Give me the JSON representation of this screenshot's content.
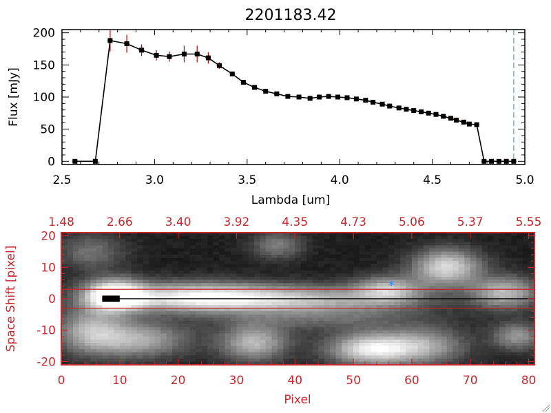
{
  "chart_data": [
    {
      "type": "line",
      "title": "2201183.42",
      "xlabel": "Lambda [um]",
      "ylabel": "Flux [mJy]",
      "xlim": [
        2.5,
        5.0
      ],
      "ylim": [
        -5,
        205
      ],
      "xticks": [
        "2.5",
        "3.0",
        "3.5",
        "4.0",
        "4.5",
        "5.0"
      ],
      "yticks": [
        "0",
        "50",
        "100",
        "150",
        "200"
      ],
      "grid": false,
      "colors": {
        "line": "#000000",
        "marker": "#000000",
        "errorbar": "#cc0000",
        "cutoff_line": "#1a9e8f"
      },
      "cutoff_lambda": 4.94,
      "series": [
        {
          "x": [
            2.57,
            2.68,
            2.76,
            2.85,
            2.93,
            3.01,
            3.08,
            3.16,
            3.23,
            3.29,
            3.35,
            3.42,
            3.48,
            3.54,
            3.6,
            3.66,
            3.72,
            3.78,
            3.84,
            3.89,
            3.94,
            3.99,
            4.04,
            4.09,
            4.14,
            4.18,
            4.23,
            4.27,
            4.32,
            4.36,
            4.4,
            4.44,
            4.48,
            4.52,
            4.56,
            4.6,
            4.63,
            4.67,
            4.7,
            4.74,
            4.78,
            4.82,
            4.86,
            4.9,
            4.94
          ],
          "y": [
            0,
            0,
            188,
            183,
            173,
            165,
            163,
            167,
            167,
            161,
            149,
            136,
            123,
            115,
            109,
            105,
            101,
            100,
            98,
            100,
            101,
            100,
            99,
            97,
            95,
            92,
            89,
            86,
            83,
            81,
            79,
            77,
            75,
            73,
            70,
            67,
            64,
            61,
            58,
            57,
            0,
            0,
            0,
            0,
            0
          ],
          "err": [
            0,
            0,
            17,
            14,
            9,
            8,
            8,
            13,
            13,
            9,
            5,
            3,
            3,
            3,
            2,
            2,
            2,
            2,
            2,
            2,
            2,
            2,
            2,
            2,
            2,
            2,
            2,
            2,
            2,
            2,
            2,
            2,
            2,
            2,
            2,
            2,
            2,
            2,
            2,
            2,
            0,
            0,
            0,
            0,
            0
          ]
        }
      ]
    },
    {
      "type": "heatmap",
      "xlabel": "Pixel",
      "ylabel": "Space Shift [pixel]",
      "xlim": [
        0,
        81
      ],
      "ylim": [
        -21,
        21
      ],
      "xticks": [
        "0",
        "10",
        "20",
        "30",
        "40",
        "50",
        "60",
        "70",
        "80"
      ],
      "yticks": [
        "-20",
        "-10",
        "0",
        "10",
        "20"
      ],
      "top_axis_ticks": [
        "1.48",
        "2.66",
        "3.40",
        "3.92",
        "4.35",
        "4.73",
        "5.06",
        "5.37",
        "5.55"
      ],
      "colors": {
        "axis": "#c8282d",
        "extraction_lines": "#cc2222",
        "trace": "#000000",
        "star_marker": "#2e8bff"
      },
      "extraction_aperture": [
        -3,
        3
      ],
      "star_marker": {
        "x": 56.5,
        "y": 4.5
      },
      "blobs": [
        {
          "x": 9,
          "y": 1,
          "sx": 3.5,
          "sy": 3.5,
          "a": 1.0
        },
        {
          "x": 22,
          "y": 0.5,
          "sx": 10,
          "sy": 3.2,
          "a": 0.7
        },
        {
          "x": 40,
          "y": 0,
          "sx": 14,
          "sy": 3,
          "a": 0.55
        },
        {
          "x": 56,
          "y": 3,
          "sx": 4,
          "sy": 3,
          "a": 0.55
        },
        {
          "x": 66,
          "y": 10,
          "sx": 4,
          "sy": 4,
          "a": 0.75
        },
        {
          "x": 76,
          "y": 2,
          "sx": 4,
          "sy": 3.5,
          "a": 0.6
        },
        {
          "x": 5,
          "y": -10,
          "sx": 4,
          "sy": 5,
          "a": 0.5
        },
        {
          "x": 13,
          "y": -13,
          "sx": 6,
          "sy": 4,
          "a": 0.55
        },
        {
          "x": 33,
          "y": -14,
          "sx": 4,
          "sy": 4,
          "a": 0.6
        },
        {
          "x": 53,
          "y": -16,
          "sx": 5,
          "sy": 3.5,
          "a": 0.8
        },
        {
          "x": 62,
          "y": -15,
          "sx": 5,
          "sy": 4,
          "a": 0.5
        },
        {
          "x": 78,
          "y": -12,
          "sx": 3,
          "sy": 3,
          "a": 0.45
        },
        {
          "x": 37,
          "y": 17,
          "sx": 3,
          "sy": 3,
          "a": 0.35
        },
        {
          "x": 5,
          "y": 15,
          "sx": 4,
          "sy": 4,
          "a": 0.3
        },
        {
          "x": 45,
          "y": -6,
          "sx": 12,
          "sy": 3,
          "a": 0.25
        }
      ],
      "trace": {
        "x_start": 7,
        "x_end": 81,
        "y": 0
      },
      "saturated_block": {
        "x": [
          7,
          10
        ],
        "y": [
          -1,
          1
        ]
      }
    }
  ]
}
